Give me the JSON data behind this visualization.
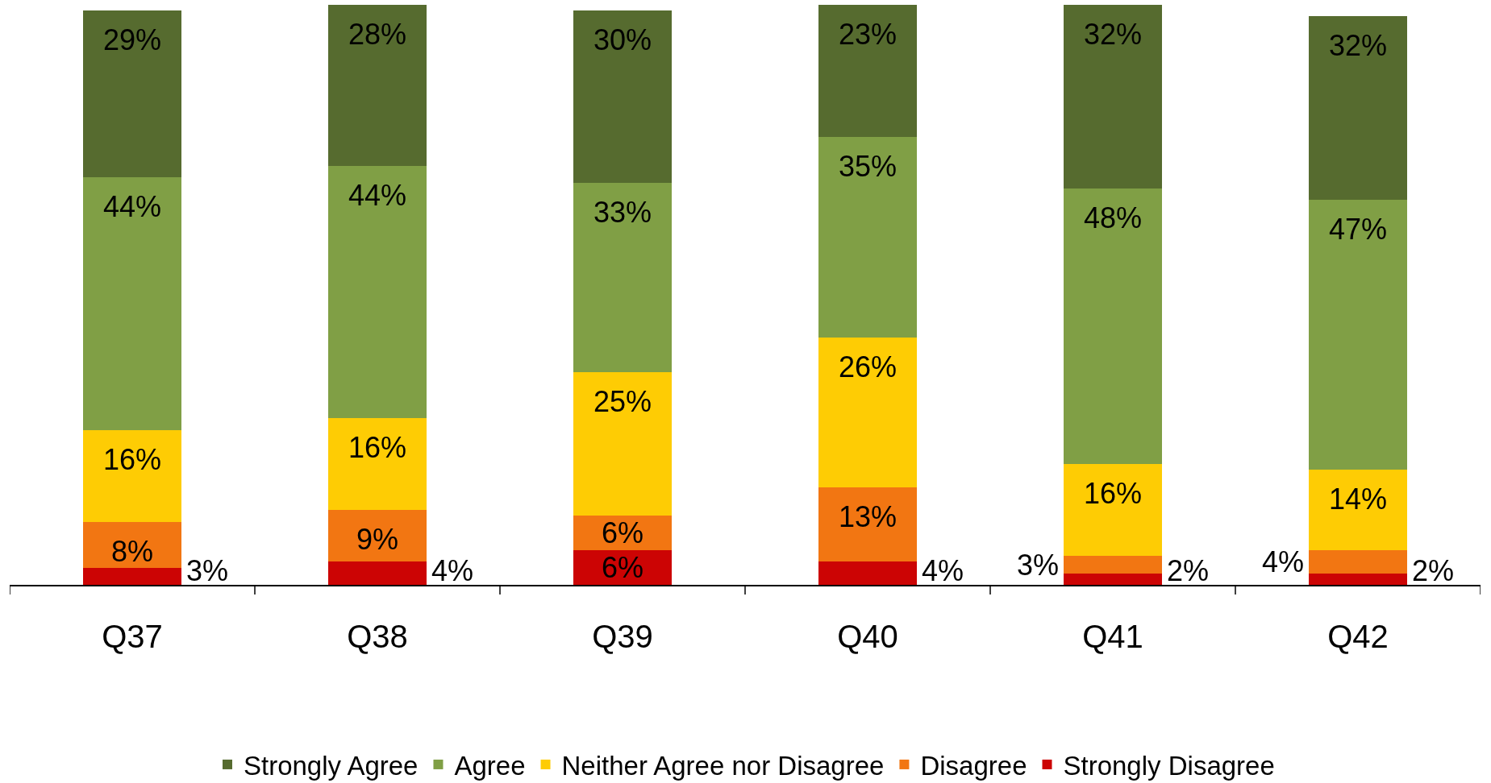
{
  "chart_data": {
    "type": "bar",
    "stacked": true,
    "categories": [
      "Q37",
      "Q38",
      "Q39",
      "Q40",
      "Q41",
      "Q42"
    ],
    "series": [
      {
        "name": "Strongly Disagree",
        "color": "#cc0404",
        "values": [
          3,
          4,
          6,
          4,
          2,
          2
        ],
        "value_labels": [
          "3%",
          "4%",
          "6%",
          "4%",
          "2%",
          "2%"
        ]
      },
      {
        "name": "Disagree",
        "color": "#f27612",
        "values": [
          8,
          9,
          6,
          13,
          3,
          4
        ],
        "value_labels": [
          "8%",
          "9%",
          "6%",
          "13%",
          "3%",
          "4%"
        ]
      },
      {
        "name": "Neither Agree nor Disagree",
        "color": "#fecc04",
        "values": [
          16,
          16,
          25,
          26,
          16,
          14
        ],
        "value_labels": [
          "16%",
          "16%",
          "25%",
          "26%",
          "16%",
          "14%"
        ]
      },
      {
        "name": "Agree",
        "color": "#809f45",
        "values": [
          44,
          44,
          33,
          35,
          48,
          47
        ],
        "value_labels": [
          "44%",
          "44%",
          "33%",
          "35%",
          "48%",
          "47%"
        ]
      },
      {
        "name": "Strongly Agree",
        "color": "#566b2f",
        "values": [
          29,
          28,
          30,
          23,
          32,
          32
        ],
        "value_labels": [
          "29%",
          "28%",
          "30%",
          "23%",
          "32%",
          "32%"
        ]
      }
    ],
    "legend": "bottom",
    "tick_labels": "x"
  }
}
